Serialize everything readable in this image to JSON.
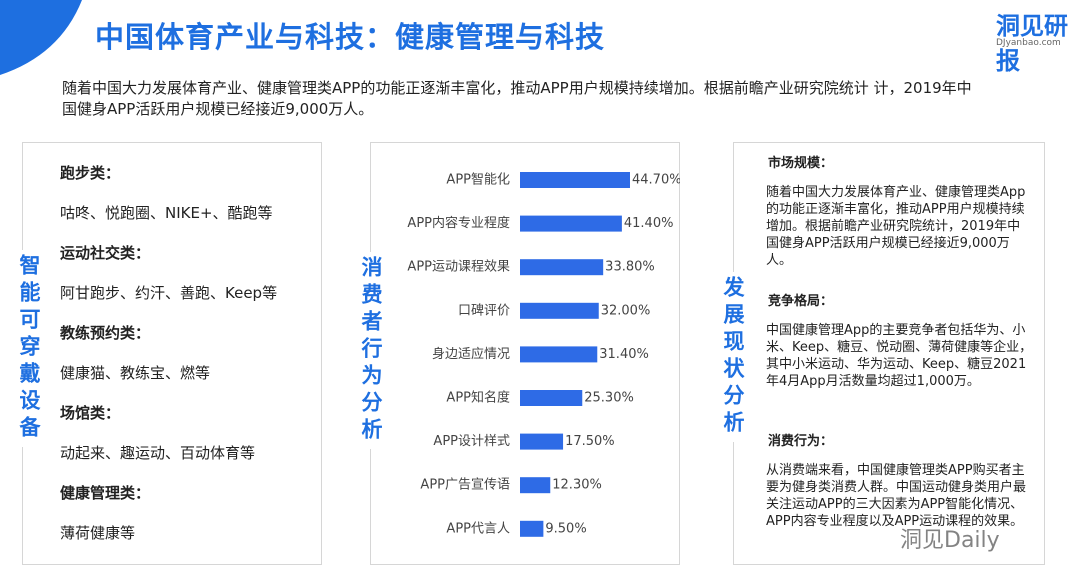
{
  "header": {
    "title": "中国体育产业与科技：健康管理与科技",
    "logo": "洞见研报",
    "logo_url": "DJyanbao.com"
  },
  "intro": "随着中国大力发展体育产业、健康管理类APP的功能正逐渐丰富化，推动APP用户规模持续增加。根据前瞻产业研究院统计 计，2019年中国健身APP活跃用户规模已经接近9,000万人。",
  "left_panel": {
    "label": "智能可穿戴设备",
    "sections": [
      {
        "heading": "跑步类：",
        "text": "咕咚、悦跑圈、NIKE+、酷跑等"
      },
      {
        "heading": "运动社交类：",
        "text": "阿甘跑步、约汗、善跑、Keep等"
      },
      {
        "heading": "教练预约类：",
        "text": "健康猫、教练宝、燃等"
      },
      {
        "heading": "场馆类：",
        "text": "动起来、趣运动、百动体育等"
      },
      {
        "heading": "健康管理类：",
        "text": "薄荷健康等"
      }
    ]
  },
  "middle_panel": {
    "label": "消费者行为分析"
  },
  "chart_data": {
    "type": "hbar",
    "color": "#2e6be6",
    "categories": [
      "APP智能化",
      "APP内容专业程度",
      "APP运动课程效果",
      "口碑评价",
      "身边适应情况",
      "APP知名度",
      "APP设计样式",
      "APP广告宣传语",
      "APP代言人"
    ],
    "values": [
      44.7,
      41.4,
      33.8,
      32.0,
      31.4,
      25.3,
      17.5,
      12.3,
      9.5
    ],
    "value_labels": [
      "44.70%",
      "41.40%",
      "33.80%",
      "32.00%",
      "31.40%",
      "25.30%",
      "17.50%",
      "12.30%",
      "9.50%"
    ]
  },
  "right_panel": {
    "label": "发展现状分析",
    "sections": [
      {
        "heading": "市场规模：",
        "text": "随着中国大力发展体育产业、健康管理类App 的功能正逐渐丰富化，推动APP用户规模持续增加。根据前瞻产业研究院统计，2019年中 国健身APP活跃用户规模已经接近9,000万人。"
      },
      {
        "heading": "竞争格局：",
        "text": "中国健康管理App的主要竞争者包括华为、小米、Keep、糖豆、悦动圈、薄荷健康等企业， 其中小米运动、华为运动、Keep、糖豆2021年4月App月活数量均超过1,000万。"
      },
      {
        "heading": "消费行为：",
        "text": "从消费端来看，中国健康管理类APP购买者主要为健身类消费人群。中国运动健身类用户最关注运动APP的三大因素为APP智能化情况、APP内容专业程度以及APP运动课程的效果。"
      }
    ]
  },
  "watermark": "洞见Daily"
}
